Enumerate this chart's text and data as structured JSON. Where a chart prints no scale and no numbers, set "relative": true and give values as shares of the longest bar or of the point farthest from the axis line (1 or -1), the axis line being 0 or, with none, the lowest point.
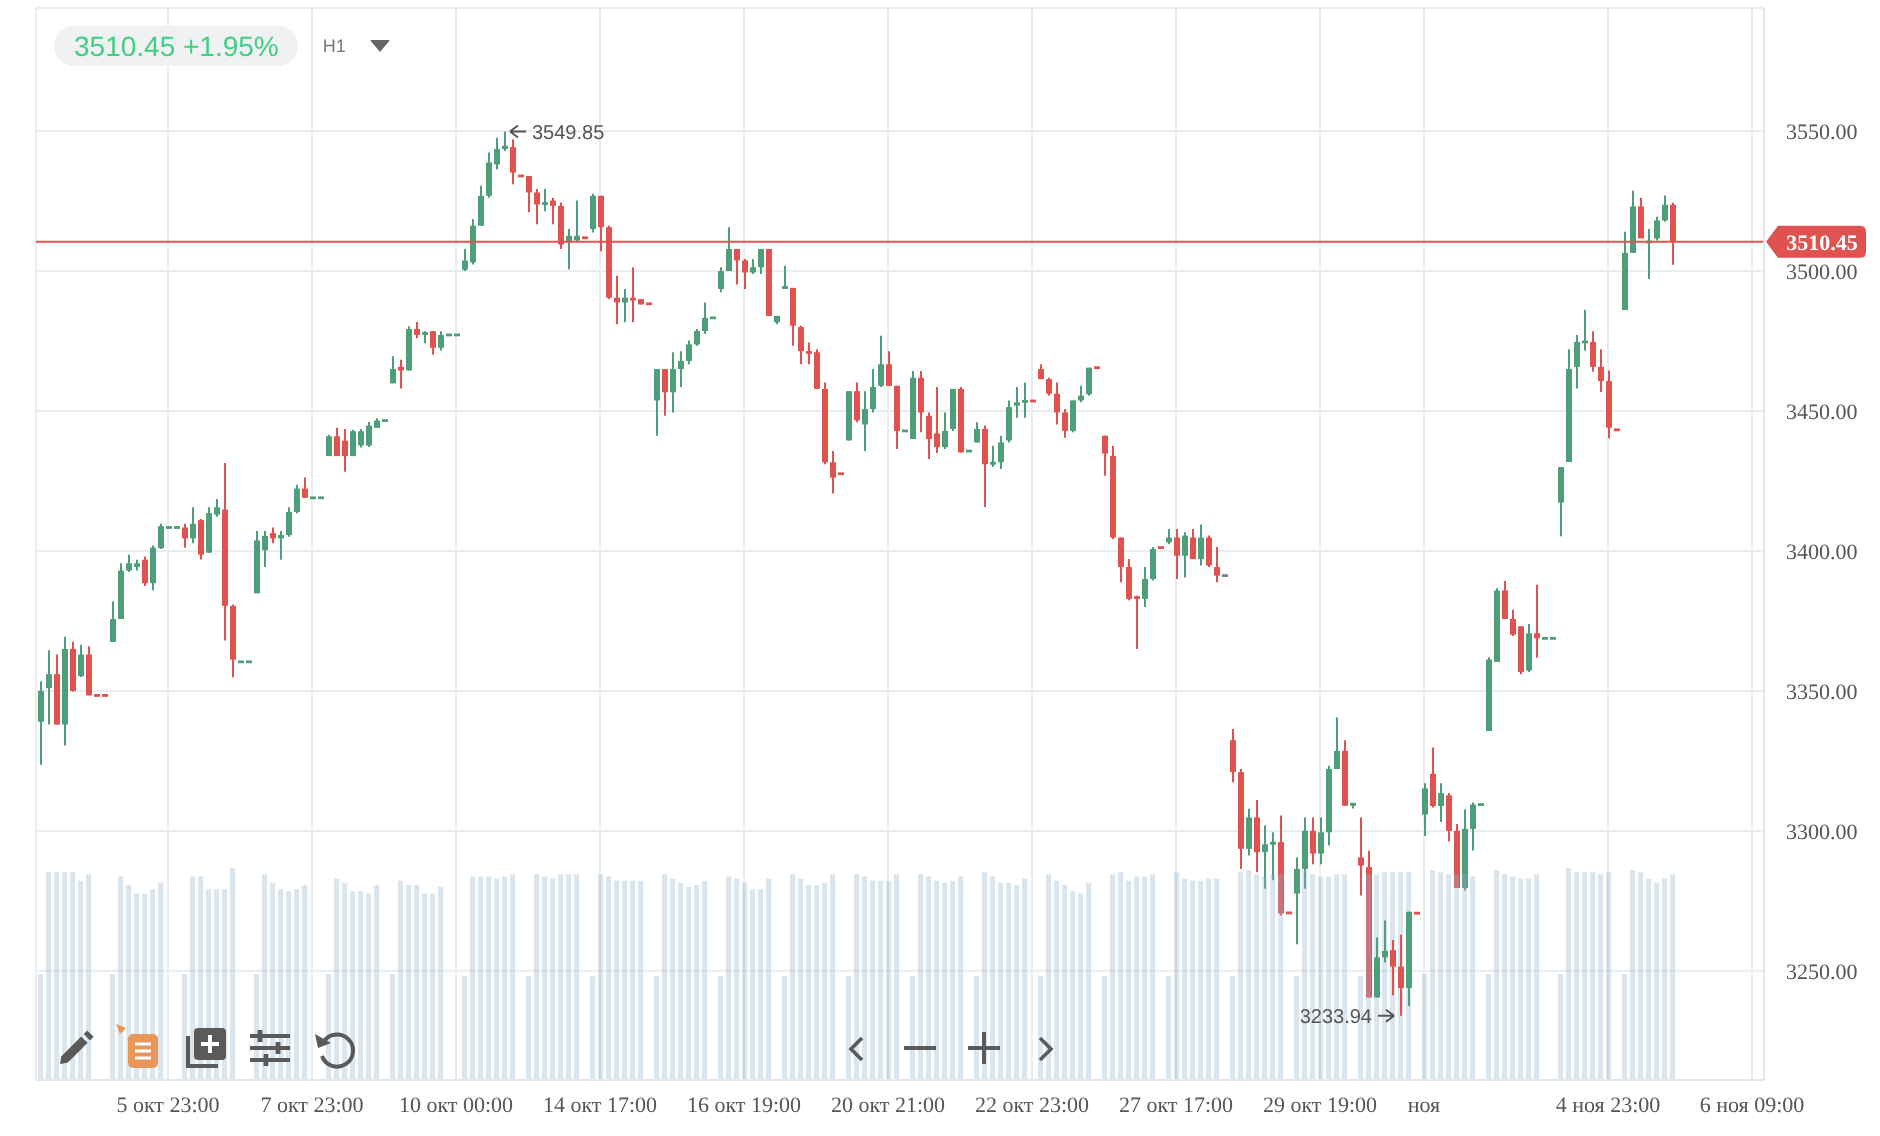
{
  "chart_data": [
    {
      "type": "candlestick",
      "title": "3510.45 +1.95%",
      "subtitle": "H1",
      "categories": [
        null,
        null,
        null,
        null,
        null,
        null,
        null,
        null,
        null,
        null,
        null,
        null,
        null,
        null,
        null,
        null,
        "5 окт 23:00",
        null,
        null,
        null,
        null,
        null,
        null,
        null,
        null,
        null,
        null,
        null,
        null,
        null,
        null,
        null,
        null,
        null,
        "7 окт 23:00",
        null,
        null,
        null,
        null,
        null,
        null,
        null,
        null,
        null,
        null,
        null,
        null,
        null,
        null,
        null,
        null,
        null,
        "10 окт 00:00",
        null,
        null,
        null,
        null,
        null,
        null,
        null,
        null,
        null,
        null,
        null,
        null,
        null,
        null,
        null,
        null,
        null,
        "14 окт 17:00",
        null,
        null,
        null,
        null,
        null,
        null,
        null,
        null,
        null,
        null,
        null,
        null,
        null,
        null,
        null,
        null,
        null,
        "16 окт 19:00",
        null,
        null,
        null,
        null,
        null,
        null,
        null,
        null,
        null,
        null,
        null,
        null,
        null,
        null,
        null,
        null,
        null,
        "20 окт 21:00",
        null,
        null,
        null,
        null,
        null,
        null,
        null,
        null,
        null,
        null,
        null,
        null,
        null,
        null,
        null,
        null,
        null,
        "22 окт 23:00",
        null,
        null,
        null,
        null,
        null,
        null,
        null,
        null,
        null,
        null,
        null,
        null,
        null,
        null,
        null,
        null,
        null,
        "27 окт 17:00",
        null,
        null,
        null,
        null,
        null,
        null,
        null,
        null,
        null,
        null,
        null,
        null,
        null,
        null,
        null,
        null,
        null,
        "29 окт 19:00",
        null,
        null,
        null,
        null,
        null,
        null,
        null,
        null,
        null,
        null,
        null,
        null,
        "ноя",
        null,
        null,
        null,
        null,
        null,
        null,
        null,
        null,
        null,
        null,
        null,
        null,
        null,
        null,
        null,
        null,
        null,
        null,
        null,
        null,
        null,
        null,
        "4 ноя 23:00",
        null,
        null,
        null,
        null,
        null,
        null,
        null,
        null,
        null,
        null,
        null,
        null,
        null,
        null,
        null,
        null,
        null,
        "6 ноя 09:00",
        null
      ],
      "ohlc": [
        [
          3339,
          3353.5,
          3323.6,
          3350
        ],
        [
          3351,
          3364.5,
          3338,
          3356
        ],
        [
          3356,
          3363,
          3338,
          3338
        ],
        [
          3338,
          3369.4,
          3330.5,
          3365
        ],
        [
          3365,
          3367.6,
          3349.7,
          3350
        ],
        [
          3355.3,
          3366.5,
          3355,
          3363
        ],
        [
          3363,
          3366,
          3348.4,
          3348.4
        ],
        [
          3348.4,
          3348.4,
          3348.4,
          3348.4
        ],
        [
          3348.4,
          3348.4,
          3348.4,
          3348.4
        ],
        [
          3367.5,
          3382,
          3367.5,
          3375.7
        ],
        [
          3375.7,
          3395.6,
          3375.7,
          3393
        ],
        [
          3393,
          3398.7,
          3392.5,
          3395.6
        ],
        [
          3394.3,
          3396.9,
          3393,
          3395.6
        ],
        [
          3396.9,
          3398,
          3387.5,
          3388.5
        ],
        [
          3388.5,
          3402,
          3386,
          3401.2
        ],
        [
          3401,
          3409.7,
          3400.7,
          3408.9
        ],
        [
          3408.4,
          3408.4,
          3408.4,
          3408.4
        ],
        [
          3408.4,
          3408.4,
          3408.4,
          3408.4
        ],
        [
          3408.4,
          3409.7,
          3401.2,
          3404.5
        ],
        [
          3404.5,
          3415.6,
          3402.8,
          3409.7
        ],
        [
          3411,
          3411.4,
          3397,
          3398.7
        ],
        [
          3399.4,
          3415.6,
          3399.4,
          3413.5
        ],
        [
          3413,
          3418.6,
          3412.2,
          3415.6
        ],
        [
          3414.8,
          3431.4,
          3368,
          3380.4
        ],
        [
          3380.4,
          3380.9,
          3354.9,
          3361.2
        ],
        [
          3360.4,
          3360.4,
          3360.4,
          3360.4
        ],
        [
          3360.4,
          3360.4,
          3360.4,
          3360.4
        ],
        [
          3384.9,
          3407.1,
          3384.9,
          3403.8
        ],
        [
          3400.3,
          3407.1,
          3394.3,
          3405.4
        ],
        [
          3406.4,
          3408.4,
          3402.8,
          3404.5
        ],
        [
          3404.5,
          3407.1,
          3396.9,
          3405.7
        ],
        [
          3405.7,
          3415.6,
          3405.1,
          3413.9
        ],
        [
          3413.9,
          3423.7,
          3413.5,
          3422.3
        ],
        [
          3422.3,
          3426.3,
          3419,
          3419
        ],
        [
          3419,
          3419,
          3419,
          3419
        ],
        [
          3419,
          3419,
          3419,
          3419
        ],
        [
          3433.9,
          3441.5,
          3433.9,
          3441
        ],
        [
          3441,
          3444,
          3433.9,
          3433.9
        ],
        [
          3439.4,
          3443.6,
          3428.3,
          3433.9
        ],
        [
          3433.9,
          3443.3,
          3433.9,
          3442.8
        ],
        [
          3437.7,
          3443.6,
          3437,
          3442.8
        ],
        [
          3437.7,
          3446.1,
          3437.2,
          3444.8
        ],
        [
          3444,
          3447.4,
          3444,
          3446.6
        ],
        [
          3446.6,
          3446.6,
          3446.6,
          3446.6
        ],
        [
          3459.9,
          3469.6,
          3459.9,
          3465
        ],
        [
          3465.8,
          3468.3,
          3458.1,
          3464.5
        ],
        [
          3464.5,
          3480.3,
          3464.5,
          3479.3
        ],
        [
          3479.3,
          3481.8,
          3476,
          3477.2
        ],
        [
          3477.2,
          3478.5,
          3474.2,
          3478.2
        ],
        [
          3478.5,
          3478.5,
          3470.1,
          3472.6
        ],
        [
          3472.6,
          3478.5,
          3471.6,
          3477.2
        ],
        [
          3477.2,
          3477.2,
          3477.2,
          3477.2
        ],
        [
          3477.2,
          3477.2,
          3477.2,
          3477.2
        ],
        [
          3500.5,
          3507.9,
          3500,
          3503.8
        ],
        [
          3503.1,
          3518.6,
          3502.4,
          3516.2
        ],
        [
          3516.2,
          3530.5,
          3516.2,
          3526.9
        ],
        [
          3526.9,
          3542.4,
          3526.2,
          3538.8
        ],
        [
          3538.1,
          3547.6,
          3536.4,
          3543.6
        ],
        [
          3543.6,
          3549.85,
          3542.9,
          3544.8
        ],
        [
          3544.3,
          3547.1,
          3531,
          3535.2
        ],
        [
          3534,
          3534,
          3534,
          3534
        ],
        [
          3534,
          3534,
          3521,
          3528.1
        ],
        [
          3528.1,
          3529.3,
          3516.7,
          3523.8
        ],
        [
          3523.8,
          3529.3,
          3521.4,
          3524.5
        ],
        [
          3525.2,
          3526.2,
          3516.7,
          3523.3
        ],
        [
          3523.3,
          3524.5,
          3507.9,
          3509.5
        ],
        [
          3510.2,
          3515,
          3500.7,
          3512.6
        ],
        [
          3511,
          3525.2,
          3510.2,
          3512.6
        ],
        [
          3511.9,
          3511.9,
          3511.9,
          3511.9
        ],
        [
          3515,
          3527.6,
          3513.8,
          3526.9
        ],
        [
          3526.9,
          3526.9,
          3507.1,
          3515.7
        ],
        [
          3515.7,
          3516.2,
          3490,
          3490.5
        ],
        [
          3490.5,
          3498.3,
          3481,
          3488.8
        ],
        [
          3488.8,
          3493.6,
          3481.7,
          3490.5
        ],
        [
          3490.5,
          3501.4,
          3481.7,
          3489.5
        ],
        [
          3490,
          3490,
          3488.1,
          3488.1
        ],
        [
          3488.3,
          3488.3,
          3488.3,
          3488.3
        ],
        [
          3453.8,
          3465,
          3441.2,
          3465
        ],
        [
          3465,
          3465,
          3448.3,
          3456.7
        ],
        [
          3456.7,
          3471,
          3449.5,
          3465
        ],
        [
          3465,
          3471.4,
          3458.6,
          3467.9
        ],
        [
          3467.9,
          3475.2,
          3466.7,
          3473.8
        ],
        [
          3473.8,
          3479.3,
          3473.3,
          3478.6
        ],
        [
          3478.6,
          3488.8,
          3477.6,
          3483.3
        ],
        [
          3483.3,
          3483.3,
          3483.3,
          3483.3
        ],
        [
          3493.6,
          3501.4,
          3492.4,
          3500
        ],
        [
          3500,
          3515.7,
          3500,
          3507.9
        ],
        [
          3507.9,
          3507.9,
          3495.2,
          3503.8
        ],
        [
          3503.8,
          3504.3,
          3493.6,
          3499.5
        ],
        [
          3499.5,
          3504.3,
          3499,
          3501.4
        ],
        [
          3501.4,
          3507.9,
          3499,
          3507.9
        ],
        [
          3507.9,
          3507.9,
          3484,
          3484
        ],
        [
          3481.7,
          3484,
          3481,
          3484
        ],
        [
          3494,
          3501.9,
          3493.6,
          3494.3
        ],
        [
          3494,
          3494,
          3473.3,
          3480.5
        ],
        [
          3480,
          3480.5,
          3466.7,
          3471.4
        ],
        [
          3471.4,
          3474.5,
          3466.7,
          3470.5
        ],
        [
          3471,
          3472.1,
          3457.9,
          3457.9
        ],
        [
          3457.9,
          3460.2,
          3431,
          3431.7
        ],
        [
          3431.7,
          3435.7,
          3420.5,
          3426.2
        ],
        [
          3427.6,
          3427.6,
          3427.6,
          3427.6
        ],
        [
          3439.5,
          3457.1,
          3439.5,
          3457.1
        ],
        [
          3457.1,
          3460.2,
          3446,
          3446.7
        ],
        [
          3445.2,
          3457.1,
          3435.7,
          3450.7
        ],
        [
          3450.7,
          3465,
          3449.5,
          3458.6
        ],
        [
          3459,
          3476.9,
          3458.6,
          3466.7
        ],
        [
          3466.7,
          3471.4,
          3459,
          3459
        ],
        [
          3459,
          3459,
          3436.4,
          3442.9
        ],
        [
          3442.9,
          3442.9,
          3442.9,
          3442.9
        ],
        [
          3440,
          3464.3,
          3440,
          3461.9
        ],
        [
          3461.9,
          3464.3,
          3442.4,
          3449.5
        ],
        [
          3448.3,
          3449.5,
          3432.9,
          3440
        ],
        [
          3442,
          3458.6,
          3435,
          3437.1
        ],
        [
          3437.1,
          3449.5,
          3436.4,
          3442.9
        ],
        [
          3443.6,
          3457.9,
          3442.9,
          3457.9
        ],
        [
          3457.9,
          3458.6,
          3435.2,
          3435.2
        ],
        [
          3435.7,
          3435.7,
          3435.7,
          3435.7
        ],
        [
          3438.8,
          3446,
          3438.8,
          3443.6
        ],
        [
          3443.6,
          3444.8,
          3415.7,
          3431
        ],
        [
          3431,
          3437.6,
          3430,
          3431.7
        ],
        [
          3431.7,
          3441.2,
          3429.3,
          3438.8
        ],
        [
          3439.5,
          3453.8,
          3438.8,
          3451.4
        ],
        [
          3451.9,
          3458.6,
          3447.6,
          3453.1
        ],
        [
          3453.1,
          3460.2,
          3447.6,
          3453.8
        ],
        [
          3453.6,
          3453.6,
          3453.6,
          3453.6
        ],
        [
          3465,
          3466.7,
          3461.4,
          3461.4
        ],
        [
          3461.4,
          3461.9,
          3455.5,
          3456.2
        ],
        [
          3456.2,
          3460.2,
          3445.2,
          3449.5
        ],
        [
          3449.5,
          3450.7,
          3440.5,
          3442.9
        ],
        [
          3442.9,
          3453.8,
          3442.4,
          3453.8
        ],
        [
          3453.8,
          3459,
          3453.1,
          3455.5
        ],
        [
          3456,
          3465.5,
          3455.5,
          3465.5
        ],
        [
          3465.5,
          3465.5,
          3465.5,
          3465.5
        ],
        [
          3441.2,
          3441.2,
          3426.9,
          3434.8
        ],
        [
          3434,
          3437.6,
          3404.3,
          3404.8
        ],
        [
          3404.8,
          3404.8,
          3388.8,
          3394.3
        ],
        [
          3394.3,
          3397.1,
          3382.4,
          3382.9
        ],
        [
          3383.8,
          3384,
          3365,
          3382.9
        ],
        [
          3382.9,
          3394.3,
          3380,
          3390
        ],
        [
          3390,
          3401.4,
          3389.5,
          3400.7
        ],
        [
          3401.2,
          3401.2,
          3401.2,
          3401.2
        ],
        [
          3403.1,
          3407.9,
          3402.4,
          3404.8
        ],
        [
          3404.8,
          3407.9,
          3390,
          3398.3
        ],
        [
          3398.3,
          3406.7,
          3390.5,
          3405.5
        ],
        [
          3404.8,
          3407.9,
          3397.1,
          3397.1
        ],
        [
          3397.1,
          3409.5,
          3394.8,
          3404.8
        ],
        [
          3404.8,
          3405.5,
          3394.3,
          3394.8
        ],
        [
          3394.3,
          3401.4,
          3388.8,
          3391.2
        ],
        [
          3391.2,
          3391.2,
          3391.2,
          3391.2
        ],
        [
          3332.4,
          3336.4,
          3317.4,
          3321
        ],
        [
          3321,
          3322.1,
          3286.4,
          3293.6
        ],
        [
          3293.6,
          3307.9,
          3291.2,
          3304.8
        ],
        [
          3304.8,
          3311,
          3285.2,
          3292.4
        ],
        [
          3292.4,
          3301.9,
          3279.3,
          3295.2
        ],
        [
          3295.2,
          3299.5,
          3282.4,
          3296
        ],
        [
          3296,
          3305.5,
          3269.8,
          3270.5
        ],
        [
          3270.7,
          3270.7,
          3270.7,
          3270.7
        ],
        [
          3277.6,
          3290.5,
          3259.5,
          3286.4
        ],
        [
          3286.4,
          3304.8,
          3279.3,
          3300
        ],
        [
          3300,
          3304.8,
          3288.1,
          3291.9
        ],
        [
          3291.9,
          3304.8,
          3288.1,
          3299.5
        ],
        [
          3299.5,
          3323.3,
          3294.8,
          3322.1
        ],
        [
          3322.1,
          3340.5,
          3322.1,
          3328.6
        ],
        [
          3328.6,
          3332.4,
          3309,
          3309
        ],
        [
          3309.5,
          3309.5,
          3308,
          3309.5
        ],
        [
          3290.5,
          3304.8,
          3276.9,
          3287.6
        ],
        [
          3287.1,
          3292.9,
          3240.5,
          3240.5
        ],
        [
          3240.5,
          3261.9,
          3240.5,
          3254.8
        ],
        [
          3254.8,
          3268,
          3253.1,
          3257.1
        ],
        [
          3257.4,
          3261,
          3241.3,
          3251.5
        ],
        [
          3251.5,
          3262.9,
          3233.94,
          3243.9
        ],
        [
          3243.9,
          3271.1,
          3237.4,
          3271.1
        ],
        [
          3270.6,
          3270.6,
          3270.6,
          3270.6
        ],
        [
          3305.8,
          3317,
          3298.2,
          3315.2
        ],
        [
          3320.4,
          3329.8,
          3308.4,
          3308.9
        ],
        [
          3308.9,
          3317,
          3303.2,
          3313.5
        ],
        [
          3312.7,
          3313.5,
          3296.2,
          3300
        ],
        [
          3300,
          3302.5,
          3279.6,
          3279.6
        ],
        [
          3279.6,
          3307.6,
          3278.7,
          3300.7
        ],
        [
          3300.7,
          3310.1,
          3293,
          3309.4
        ],
        [
          3309.4,
          3309.4,
          3309.4,
          3309.4
        ],
        [
          3335.7,
          3362,
          3335.7,
          3361.2
        ],
        [
          3360.4,
          3386.7,
          3360.4,
          3385.9
        ],
        [
          3385.9,
          3389.3,
          3375.7,
          3375.7
        ],
        [
          3375.7,
          3379,
          3369.6,
          3370.1
        ],
        [
          3373.1,
          3373.1,
          3356,
          3356.8
        ],
        [
          3357.3,
          3373.9,
          3356.8,
          3370.6
        ],
        [
          3370.6,
          3387.9,
          3361.9,
          3368.8
        ],
        [
          3368.8,
          3368.8,
          3368.8,
          3368.8
        ],
        [
          3368.8,
          3368.8,
          3368.8,
          3368.8
        ],
        [
          3417.3,
          3430,
          3405.3,
          3430
        ],
        [
          3431.8,
          3472.1,
          3431.8,
          3465
        ],
        [
          3465.8,
          3477.2,
          3458.1,
          3474.7
        ],
        [
          3474.2,
          3486.2,
          3471.6,
          3475.2
        ],
        [
          3474.7,
          3478.5,
          3464,
          3465.8
        ],
        [
          3465.8,
          3472.1,
          3456.8,
          3460.7
        ],
        [
          3460.7,
          3464.5,
          3440.3,
          3444.1
        ],
        [
          3443.3,
          3443.3,
          3443.3,
          3443.3
        ],
        [
          3486.1,
          3514.1,
          3486.1,
          3506.5
        ],
        [
          3506.5,
          3528.7,
          3506.5,
          3523.1
        ],
        [
          3523.1,
          3526.2,
          3511.7,
          3511.7
        ],
        [
          3509.9,
          3515,
          3497.2,
          3510.9
        ],
        [
          3511.7,
          3519.4,
          3510.9,
          3518.1
        ],
        [
          3518.1,
          3527,
          3517.6,
          3523.7
        ],
        [
          3523.7,
          3524.4,
          3502.3,
          3510.45
        ],
        null,
        null,
        null,
        null,
        null,
        null,
        null,
        null,
        null,
        null,
        null
      ],
      "colors": [
        "#4e9e79",
        "#4e9e79",
        "#e0524f",
        "#4e9e79",
        "#e0524f",
        "#4e9e79",
        "#e0524f",
        "#e0524f",
        "#e0524f",
        "#4e9e79",
        "#4e9e79",
        "#4e9e79",
        "#4e9e79",
        "#e0524f",
        "#4e9e79",
        "#4e9e79",
        "#4e9e79",
        "#4e9e79",
        "#e0524f",
        "#4e9e79",
        "#e0524f",
        "#4e9e79",
        "#4e9e79",
        "#e0524f",
        "#e0524f",
        "#4e9e79",
        "#4e9e79",
        "#4e9e79",
        "#4e9e79",
        "#e0524f",
        "#4e9e79",
        "#4e9e79",
        "#4e9e79",
        "#e0524f",
        "#4e9e79",
        "#4e9e79",
        "#4e9e79",
        "#e0524f",
        "#e0524f",
        "#4e9e79",
        "#4e9e79",
        "#4e9e79",
        "#4e9e79",
        "#4e9e79",
        "#4e9e79",
        "#e0524f",
        "#4e9e79",
        "#e0524f",
        "#4e9e79",
        "#e0524f",
        "#4e9e79",
        "#4e9e79",
        "#4e9e79",
        "#4e9e79",
        "#4e9e79",
        "#4e9e79",
        "#4e9e79",
        "#4e9e79",
        "#4e9e79",
        "#e0524f",
        "#e0524f",
        "#e0524f",
        "#e0524f",
        "#4e9e79",
        "#e0524f",
        "#e0524f",
        "#4e9e79",
        "#4e9e79",
        "#e0524f",
        "#4e9e79",
        "#e0524f",
        "#e0524f",
        "#e0524f",
        "#4e9e79",
        "#e0524f",
        "#e0524f",
        "#e0524f",
        "#4e9e79",
        "#e0524f",
        "#4e9e79",
        "#4e9e79",
        "#4e9e79",
        "#4e9e79",
        "#4e9e79",
        "#4e9e79",
        "#4e9e79",
        "#4e9e79",
        "#e0524f",
        "#e0524f",
        "#4e9e79",
        "#4e9e79",
        "#e0524f",
        "#4e9e79",
        "#4e9e79",
        "#e0524f",
        "#e0524f",
        "#e0524f",
        "#e0524f",
        "#e0524f",
        "#e0524f",
        "#e0524f",
        "#4e9e79",
        "#e0524f",
        "#4e9e79",
        "#4e9e79",
        "#4e9e79",
        "#e0524f",
        "#e0524f",
        "#4e9e79",
        "#4e9e79",
        "#e0524f",
        "#e0524f",
        "#e0524f",
        "#4e9e79",
        "#4e9e79",
        "#e0524f",
        "#4e9e79",
        "#4e9e79",
        "#e0524f",
        "#4e9e79",
        "#4e9e79",
        "#4e9e79",
        "#4e9e79",
        "#4e9e79",
        "#e0524f",
        "#e0524f",
        "#e0524f",
        "#e0524f",
        "#e0524f",
        "#4e9e79",
        "#4e9e79",
        "#4e9e79",
        "#e0524f",
        "#e0524f",
        "#e0524f",
        "#e0524f",
        "#e0524f",
        "#e0524f",
        "#4e9e79",
        "#4e9e79",
        "#e0524f",
        "#4e9e79",
        "#e0524f",
        "#4e9e79",
        "#e0524f",
        "#4e9e79",
        "#e0524f",
        "#e0524f",
        "#808080",
        "#e0524f",
        "#e0524f",
        "#4e9e79",
        "#e0524f",
        "#4e9e79",
        "#4e9e79",
        "#e0524f",
        "#e0524f",
        "#4e9e79",
        "#4e9e79",
        "#e0524f",
        "#4e9e79",
        "#4e9e79",
        "#4e9e79",
        "#e0524f",
        "#4e9e79",
        "#e0524f",
        "#e0524f",
        "#4e9e79",
        "#4e9e79",
        "#e0524f",
        "#e0524f",
        "#4e9e79",
        "#e0524f",
        "#4e9e79",
        "#e0524f",
        "#4e9e79",
        "#e0524f",
        "#e0524f",
        "#4e9e79",
        "#4e9e79",
        "#4e9e79",
        "#4e9e79",
        "#4e9e79",
        "#e0524f",
        "#e0524f",
        "#e0524f",
        "#4e9e79",
        "#e0524f",
        "#4e9e79",
        "#4e9e79",
        "#4e9e79",
        "#4e9e79",
        "#4e9e79",
        "#4e9e79",
        "#e0524f",
        "#e0524f",
        "#e0524f",
        "#e0524f",
        "#4e9e79",
        "#4e9e79",
        "#e0524f",
        "#4e9e79",
        "#4e9e79",
        "#4e9e79",
        "#e0524f",
        null,
        null,
        null,
        null,
        null,
        null,
        null,
        null,
        null,
        null,
        null
      ],
      "ylim": [
        3211,
        3594
      ],
      "yticks": [
        {
          "value": 3250,
          "label": "3250.00"
        },
        {
          "value": 3300,
          "label": "3300.00"
        },
        {
          "value": 3350,
          "label": "3350.00"
        },
        {
          "value": 3400,
          "label": "3400.00"
        },
        {
          "value": 3450,
          "label": "3450.00"
        },
        {
          "value": 3500,
          "label": "3500.00"
        },
        {
          "value": 3550,
          "label": "3550.00"
        }
      ],
      "grid": true,
      "ref_lines": [
        {
          "axis": "y",
          "value": 3510.45,
          "label": "3510.45",
          "color": "#e0524f"
        }
      ],
      "annotations": [
        "3549.85",
        "3233.94"
      ]
    },
    {
      "type": "bar",
      "relative": true,
      "color": "#dbe5ee",
      "categories": [
        null,
        null,
        null,
        null,
        null,
        null,
        null,
        null,
        null,
        null,
        null,
        null,
        null,
        null,
        null,
        null,
        null,
        null,
        null,
        null,
        null,
        null,
        null,
        null,
        null,
        null,
        null,
        null,
        null,
        null,
        null,
        null,
        null,
        null,
        null,
        null,
        null,
        null,
        null,
        null,
        null,
        null,
        null,
        null,
        null,
        null,
        null,
        null,
        null,
        null,
        null,
        null,
        null,
        null,
        null,
        null,
        null,
        null,
        null,
        null,
        null,
        null,
        null,
        null,
        null,
        null,
        null,
        null,
        null,
        null,
        null,
        null,
        null,
        null,
        null,
        null,
        null,
        null,
        null,
        null,
        null,
        null,
        null,
        null,
        null,
        null,
        null,
        null,
        null,
        null,
        null,
        null,
        null,
        null,
        null,
        null,
        null,
        null,
        null,
        null,
        null,
        null,
        null,
        null,
        null,
        null,
        null,
        null,
        null,
        null,
        null,
        null,
        null,
        null,
        null,
        null,
        null,
        null,
        null,
        null,
        null,
        null,
        null,
        null,
        null,
        null,
        null,
        null,
        null,
        null,
        null,
        null,
        null,
        null,
        null,
        null,
        null,
        null,
        null,
        null,
        null,
        null,
        null,
        null,
        null,
        null,
        null,
        null,
        null,
        null,
        null,
        null,
        null,
        null,
        null,
        null,
        null,
        null,
        null,
        null,
        null,
        null,
        null,
        null,
        null,
        null,
        null,
        null,
        null,
        null,
        null,
        null,
        null,
        null,
        null,
        null,
        null,
        null,
        null,
        null,
        null,
        null,
        null,
        null,
        null,
        null,
        null,
        null,
        null,
        null,
        null,
        null,
        null,
        null,
        null,
        null,
        null,
        null,
        null,
        null,
        null,
        null,
        null,
        null,
        null,
        null,
        null,
        null,
        null,
        null,
        null,
        null,
        null,
        null,
        null,
        null
      ],
      "values": [
        0.5,
        0.98,
        0.98,
        0.98,
        0.98,
        0.94,
        0.97,
        null,
        null,
        0.5,
        0.96,
        0.92,
        0.88,
        0.88,
        0.9,
        0.93,
        null,
        null,
        0.5,
        0.96,
        0.96,
        0.9,
        0.9,
        0.9,
        1,
        null,
        null,
        0.5,
        0.97,
        0.93,
        0.9,
        0.89,
        0.9,
        0.92,
        null,
        null,
        0.5,
        0.95,
        0.93,
        0.89,
        0.89,
        0.88,
        0.92,
        null,
        0.5,
        0.94,
        0.92,
        0.92,
        0.88,
        0.88,
        0.91,
        null,
        null,
        0.49,
        0.96,
        0.96,
        0.96,
        0.95,
        0.96,
        0.97,
        null,
        0.49,
        0.97,
        0.96,
        0.95,
        0.97,
        0.97,
        0.97,
        null,
        0.49,
        0.97,
        0.96,
        0.94,
        0.94,
        0.94,
        0.94,
        null,
        0.49,
        0.97,
        0.95,
        0.93,
        0.91,
        0.92,
        0.94,
        null,
        0.49,
        0.96,
        0.95,
        0.93,
        0.9,
        0.9,
        0.95,
        null,
        0.49,
        0.97,
        0.95,
        0.92,
        0.92,
        0.93,
        0.97,
        null,
        0.49,
        0.97,
        0.96,
        0.94,
        0.94,
        0.94,
        0.97,
        null,
        0.49,
        0.97,
        0.96,
        0.94,
        0.93,
        0.94,
        0.96,
        null,
        0.49,
        0.98,
        0.96,
        0.93,
        0.93,
        0.92,
        0.95,
        null,
        0.49,
        0.97,
        0.94,
        0.92,
        0.89,
        0.88,
        0.93,
        null,
        0.49,
        0.97,
        0.98,
        0.94,
        0.96,
        0.96,
        0.97,
        null,
        0.49,
        0.98,
        0.95,
        0.94,
        0.94,
        0.95,
        0.95,
        null,
        0.49,
        0.98,
        0.99,
        0.97,
        0.96,
        0.97,
        0.97,
        null,
        0.49,
        0.99,
        0.97,
        0.96,
        0.96,
        0.97,
        0.97,
        null,
        0.49,
        0.97,
        0.97,
        0.98,
        0.98,
        0.98,
        0.98,
        null,
        0.5,
        0.99,
        0.98,
        0.97,
        0.97,
        0.97,
        0.96,
        null,
        0.5,
        0.99,
        0.97,
        0.96,
        0.95,
        0.95,
        0.97,
        null,
        null,
        0.5,
        1,
        0.98,
        0.98,
        0.98,
        0.97,
        0.98,
        null,
        0.5,
        0.99,
        0.98,
        0.95,
        0.93,
        0.95,
        0.97,
        null,
        null,
        null,
        null,
        null,
        null,
        null,
        null,
        null,
        null,
        null
      ]
    }
  ]
}
